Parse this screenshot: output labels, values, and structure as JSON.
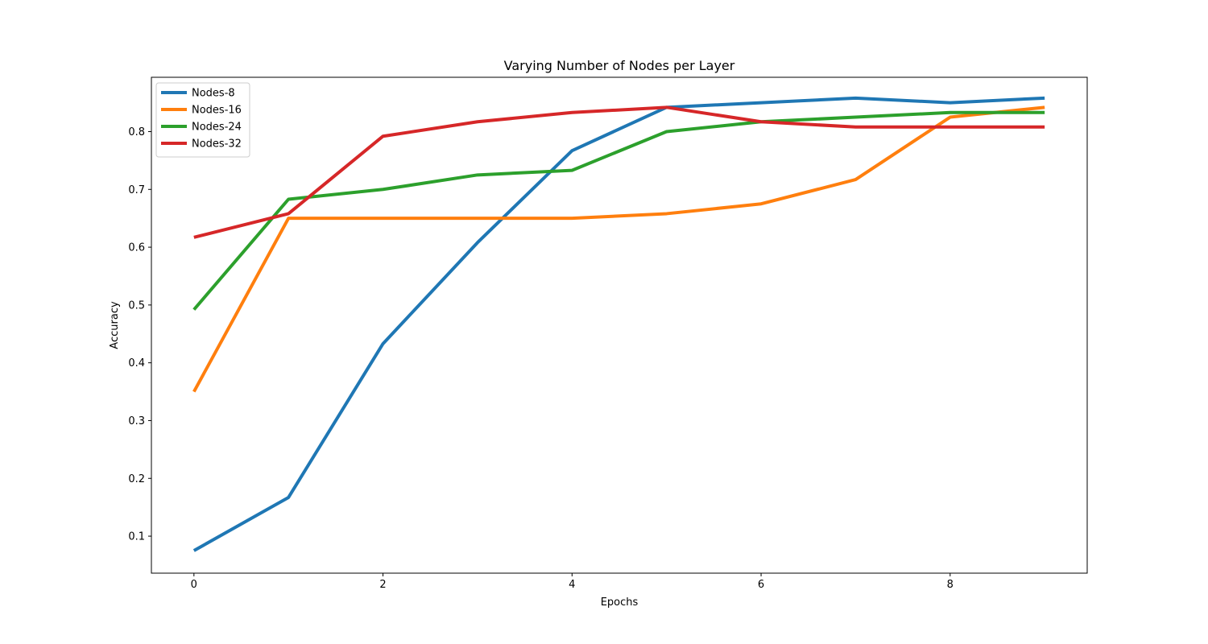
{
  "chart_data": {
    "type": "line",
    "title": "Varying Number of Nodes per Layer",
    "xlabel": "Epochs",
    "ylabel": "Accuracy",
    "xlim": [
      -0.45,
      9.45
    ],
    "ylim": [
      0.036,
      0.894
    ],
    "xticks": [
      0,
      2,
      4,
      6,
      8
    ],
    "xtick_labels": [
      "0",
      "2",
      "4",
      "6",
      "8"
    ],
    "yticks": [
      0.1,
      0.2,
      0.3,
      0.4,
      0.5,
      0.6,
      0.7,
      0.8
    ],
    "ytick_labels": [
      "0.1",
      "0.2",
      "0.3",
      "0.4",
      "0.5",
      "0.6",
      "0.7",
      "0.8"
    ],
    "grid": false,
    "legend_position": "top-left",
    "x": [
      0,
      1,
      2,
      3,
      4,
      5,
      6,
      7,
      8,
      9
    ],
    "series": [
      {
        "name": "Nodes-8",
        "color": "#1f77b4",
        "values": [
          0.075,
          0.167,
          0.433,
          0.608,
          0.767,
          0.842,
          0.85,
          0.858,
          0.85,
          0.858
        ]
      },
      {
        "name": "Nodes-16",
        "color": "#ff7f0e",
        "values": [
          0.35,
          0.65,
          0.65,
          0.65,
          0.65,
          0.658,
          0.675,
          0.717,
          0.825,
          0.842
        ]
      },
      {
        "name": "Nodes-24",
        "color": "#2ca02c",
        "values": [
          0.492,
          0.683,
          0.7,
          0.725,
          0.733,
          0.8,
          0.817,
          0.825,
          0.833,
          0.833
        ]
      },
      {
        "name": "Nodes-32",
        "color": "#d62728",
        "values": [
          0.617,
          0.658,
          0.792,
          0.817,
          0.833,
          0.842,
          0.817,
          0.808,
          0.808,
          0.808
        ]
      }
    ]
  }
}
